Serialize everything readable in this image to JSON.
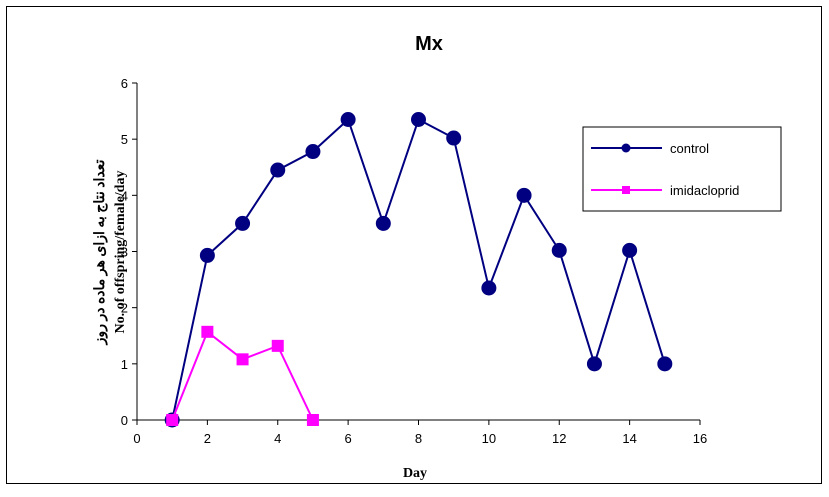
{
  "chart_data": {
    "type": "line",
    "title": "Mx",
    "xlabel": "Day",
    "ylabel_fa": "تعداد نتاج به ازای هر ماده در روز",
    "ylabel": "No. of offspring/female/day",
    "xlim": [
      0,
      16
    ],
    "ylim": [
      0,
      6
    ],
    "xticks": [
      0,
      2,
      4,
      6,
      8,
      10,
      12,
      14,
      16
    ],
    "yticks": [
      0,
      1,
      2,
      3,
      4,
      5,
      6
    ],
    "grid": false,
    "legend_position": "right",
    "series": [
      {
        "name": "control",
        "color": "#000080",
        "marker": "circle",
        "x": [
          1,
          2,
          3,
          4,
          5,
          6,
          7,
          8,
          9,
          10,
          11,
          12,
          13,
          14,
          15
        ],
        "y": [
          0,
          2.93,
          3.5,
          4.45,
          4.78,
          5.35,
          3.5,
          5.35,
          5.02,
          2.35,
          4.0,
          3.02,
          1.0,
          3.02,
          1.0
        ]
      },
      {
        "name": "imidacloprid",
        "color": "#FF00FF",
        "marker": "square",
        "x": [
          1,
          2,
          3,
          4,
          5
        ],
        "y": [
          0,
          1.57,
          1.08,
          1.32,
          0
        ]
      }
    ]
  }
}
